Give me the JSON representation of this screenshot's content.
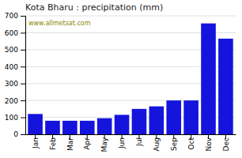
{
  "chart_data": {
    "type": "bar",
    "title": "Kota Bharu : precipitation (mm)",
    "categories": [
      "Jan",
      "Feb",
      "Mar",
      "Apr",
      "May",
      "Jun",
      "Jul",
      "Aug",
      "Sep",
      "Oct",
      "Nov",
      "Dec"
    ],
    "values": [
      120,
      80,
      80,
      80,
      95,
      115,
      150,
      165,
      200,
      200,
      655,
      565
    ],
    "color": "#1414dd",
    "ylim": [
      0,
      700
    ],
    "yticks": [
      0,
      100,
      200,
      300,
      400,
      500,
      600,
      700
    ],
    "grid": true,
    "annotations": [
      "www.allmetsat.com"
    ]
  }
}
